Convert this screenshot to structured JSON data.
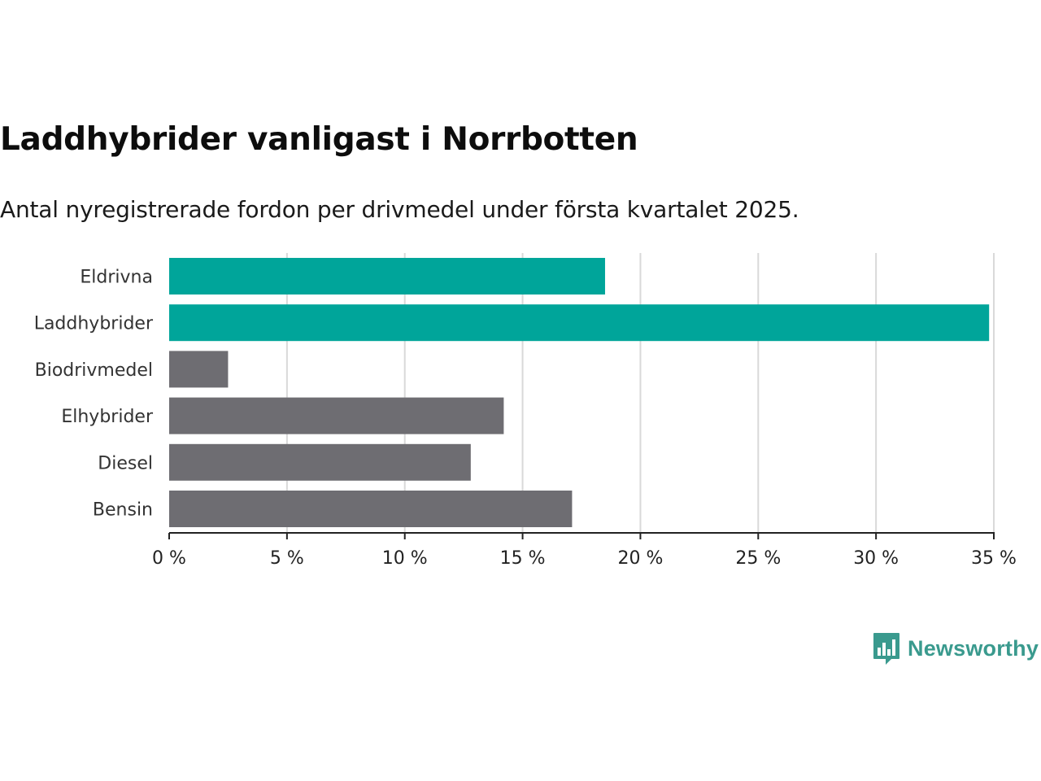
{
  "title": "Laddhybrider vanligast i Norrbotten",
  "subtitle": "Antal nyregistrerade fordon per drivmedel under första kvartalet 2025.",
  "brand": {
    "name": "Newsworthy",
    "color": "#3a9a8e"
  },
  "colors": {
    "highlight": "#00a59a",
    "default": "#6e6d72",
    "grid": "#d9d9d9",
    "axis": "#222222"
  },
  "chart_data": {
    "type": "bar",
    "orientation": "horizontal",
    "title": "Laddhybrider vanligast i Norrbotten",
    "subtitle": "Antal nyregistrerade fordon per drivmedel under första kvartalet 2025.",
    "categories": [
      "Eldrivna",
      "Laddhybrider",
      "Biodrivmedel",
      "Elhybrider",
      "Diesel",
      "Bensin"
    ],
    "values": [
      18.5,
      34.8,
      2.5,
      14.2,
      12.8,
      17.1
    ],
    "highlighted": [
      true,
      true,
      false,
      false,
      false,
      false
    ],
    "unit": "%",
    "xlim": [
      0,
      35
    ],
    "ticks": [
      0,
      5,
      10,
      15,
      20,
      25,
      30,
      35
    ],
    "tick_labels": [
      "0 %",
      "5 %",
      "10 %",
      "15 %",
      "20 %",
      "25 %",
      "30 %",
      "35 %"
    ],
    "grid": true,
    "legend": "none"
  }
}
